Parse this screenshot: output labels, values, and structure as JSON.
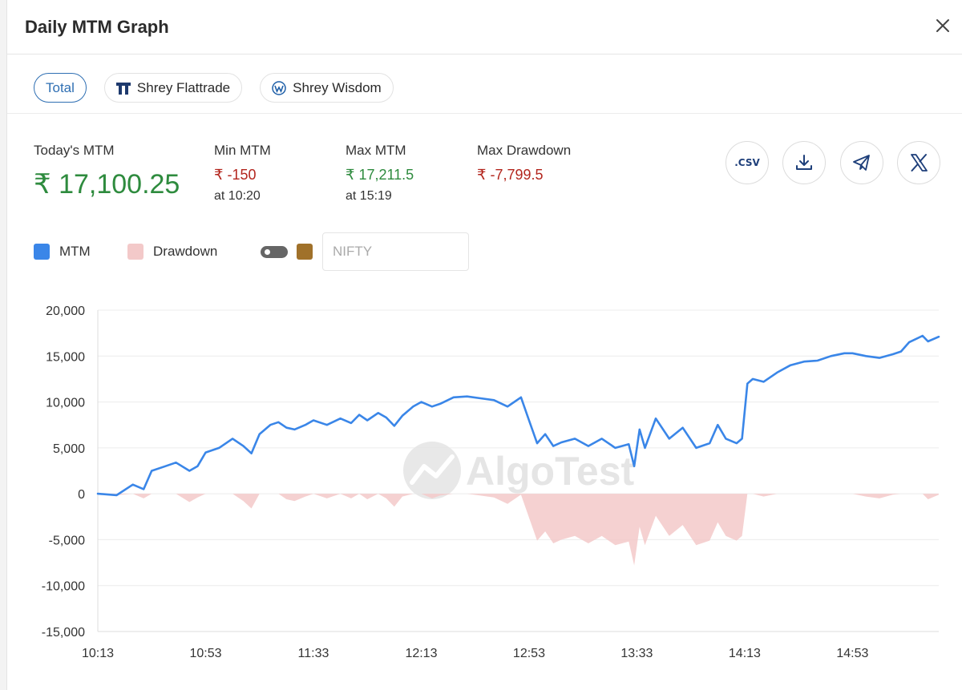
{
  "modal": {
    "title": "Daily MTM Graph"
  },
  "tabs": [
    {
      "label": "Total",
      "active": true
    },
    {
      "label": "Shrey Flattrade",
      "active": false,
      "icon": "flattrade-logo-icon"
    },
    {
      "label": "Shrey Wisdom",
      "active": false,
      "icon": "wisdom-logo-icon"
    }
  ],
  "stats": {
    "today_label": "Today's MTM",
    "today_value": "₹ 17,100.25",
    "min_label": "Min MTM",
    "min_value": "₹ -150",
    "min_time": "at 10:20",
    "max_label": "Max MTM",
    "max_value": "₹ 17,211.5",
    "max_time": "at 15:19",
    "drawdown_label": "Max Drawdown",
    "drawdown_value": "₹ -7,799.5"
  },
  "actions": {
    "csv_label": ".CSV",
    "download_icon": "download-icon",
    "telegram_icon": "telegram-icon",
    "x_icon": "x-logo-icon"
  },
  "legend": {
    "mtm_label": "MTM",
    "drawdown_label": "Drawdown",
    "nifty_placeholder": "NIFTY",
    "nifty_toggle_on": false
  },
  "colors": {
    "mtm": "#3a86e8",
    "drawdown": "#f3c9c9",
    "nifty": "#a0712a",
    "active_tab": "#2f6fb3",
    "positive": "#2e8b3e",
    "negative": "#b3261e"
  },
  "watermark": "AlgoTest",
  "chart_data": {
    "type": "line",
    "x_tick_labels": [
      "10:13",
      "10:53",
      "11:33",
      "12:13",
      "12:53",
      "13:33",
      "14:13",
      "14:53"
    ],
    "y_tick_labels": [
      "20,000",
      "15,000",
      "10,000",
      "5,000",
      "0",
      "-5,000",
      "-10,000",
      "-15,000"
    ],
    "ylim": [
      -15000,
      20000
    ],
    "xlim": [
      "10:13",
      "15:25"
    ],
    "grid": true,
    "series": [
      {
        "name": "MTM",
        "x": [
          "10:13",
          "10:20",
          "10:26",
          "10:30",
          "10:33",
          "10:38",
          "10:42",
          "10:47",
          "10:50",
          "10:53",
          "10:58",
          "11:03",
          "11:07",
          "11:10",
          "11:13",
          "11:17",
          "11:20",
          "11:23",
          "11:26",
          "11:30",
          "11:33",
          "11:38",
          "11:43",
          "11:47",
          "11:50",
          "11:53",
          "11:57",
          "12:00",
          "12:03",
          "12:06",
          "12:10",
          "12:13",
          "12:17",
          "12:20",
          "12:25",
          "12:30",
          "12:35",
          "12:40",
          "12:45",
          "12:50",
          "12:53",
          "12:56",
          "12:59",
          "13:02",
          "13:05",
          "13:10",
          "13:15",
          "13:20",
          "13:25",
          "13:30",
          "13:32",
          "13:34",
          "13:36",
          "13:40",
          "13:45",
          "13:50",
          "13:55",
          "14:00",
          "14:03",
          "14:06",
          "14:10",
          "14:12",
          "14:14",
          "14:16",
          "14:20",
          "14:25",
          "14:30",
          "14:35",
          "14:40",
          "14:45",
          "14:50",
          "14:53",
          "14:58",
          "15:03",
          "15:08",
          "15:11",
          "15:14",
          "15:19",
          "15:21",
          "15:25"
        ],
        "values": [
          0,
          -150,
          1000,
          500,
          2500,
          3000,
          3400,
          2500,
          3000,
          4500,
          5000,
          6000,
          5200,
          4400,
          6500,
          7500,
          7800,
          7200,
          7000,
          7500,
          8000,
          7500,
          8200,
          7700,
          8600,
          8000,
          8800,
          8300,
          7400,
          8500,
          9500,
          10000,
          9500,
          9800,
          10500,
          10600,
          10400,
          10200,
          9500,
          10500,
          8000,
          5500,
          6500,
          5200,
          5600,
          6000,
          5200,
          6000,
          5000,
          5400,
          3000,
          7000,
          5000,
          8200,
          6000,
          7200,
          5000,
          5500,
          7500,
          6000,
          5500,
          6000,
          12000,
          12500,
          12200,
          13200,
          14000,
          14400,
          14500,
          15000,
          15300,
          15300,
          15000,
          14800,
          15200,
          15500,
          16500,
          17211,
          16600,
          17100
        ]
      },
      {
        "name": "Drawdown",
        "x": [
          "10:13",
          "10:20",
          "10:26",
          "10:30",
          "10:33",
          "10:38",
          "10:42",
          "10:47",
          "10:50",
          "10:53",
          "10:58",
          "11:03",
          "11:07",
          "11:10",
          "11:13",
          "11:17",
          "11:20",
          "11:23",
          "11:26",
          "11:30",
          "11:33",
          "11:38",
          "11:43",
          "11:47",
          "11:50",
          "11:53",
          "11:57",
          "12:00",
          "12:03",
          "12:06",
          "12:10",
          "12:13",
          "12:17",
          "12:20",
          "12:25",
          "12:30",
          "12:35",
          "12:40",
          "12:45",
          "12:50",
          "12:53",
          "12:56",
          "12:59",
          "13:02",
          "13:05",
          "13:10",
          "13:15",
          "13:20",
          "13:25",
          "13:30",
          "13:32",
          "13:34",
          "13:36",
          "13:40",
          "13:45",
          "13:50",
          "13:55",
          "14:00",
          "14:03",
          "14:06",
          "14:10",
          "14:12",
          "14:14",
          "14:16",
          "14:20",
          "14:25",
          "14:30",
          "14:35",
          "14:40",
          "14:45",
          "14:50",
          "14:53",
          "14:58",
          "15:03",
          "15:08",
          "15:11",
          "15:14",
          "15:19",
          "15:21",
          "15:25"
        ],
        "values": [
          0,
          -150,
          0,
          -500,
          0,
          0,
          0,
          -900,
          -400,
          0,
          0,
          0,
          -800,
          -1600,
          0,
          0,
          0,
          -600,
          -800,
          -300,
          0,
          -500,
          0,
          -500,
          0,
          -600,
          0,
          -500,
          -1400,
          -300,
          0,
          0,
          -500,
          -200,
          0,
          0,
          -200,
          -400,
          -1100,
          -100,
          -2600,
          -5100,
          -4100,
          -5400,
          -5000,
          -4600,
          -5400,
          -4600,
          -5600,
          -5200,
          -7800,
          -3600,
          -5600,
          -2400,
          -4600,
          -3400,
          -5600,
          -5100,
          -3100,
          -4600,
          -5100,
          -4600,
          0,
          0,
          -300,
          0,
          0,
          0,
          0,
          0,
          0,
          0,
          -300,
          -500,
          -100,
          0,
          0,
          0,
          -600,
          -111
        ]
      }
    ]
  }
}
